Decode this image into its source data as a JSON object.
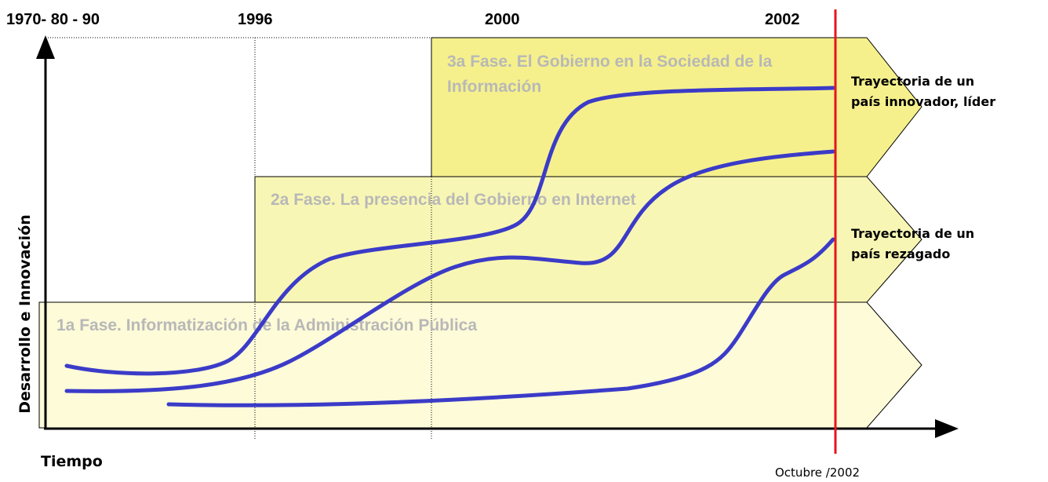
{
  "periods": [
    "1970- 80 - 90",
    "1996",
    "2000",
    "2002"
  ],
  "phases": [
    {
      "lines": [
        "1a Fase. Informatización de la Administración Pública"
      ]
    },
    {
      "lines": [
        "2a Fase. La presencia del Gobierno en Internet"
      ]
    },
    {
      "lines": [
        "3a Fase. El Gobierno en la Sociedad de la",
        "Información"
      ]
    }
  ],
  "trajectories": [
    {
      "lines": [
        "Trayectoria de un",
        "país innovador, líder"
      ]
    },
    {
      "lines": [
        "Trayectoria de un",
        "país rezagado"
      ]
    }
  ],
  "y_axis_label": "Desarrollo e Innovación",
  "x_axis_label": "Tiempo",
  "marker_label": "Octubre /2002"
}
